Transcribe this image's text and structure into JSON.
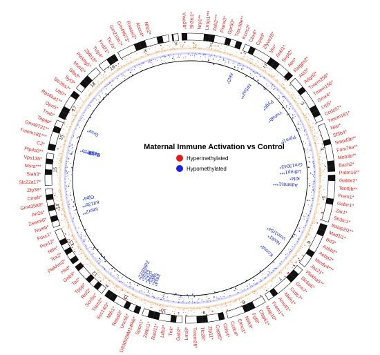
{
  "title": "Maternal Immune Activation vs Control",
  "legend": [
    {
      "label": "Hypermethylated",
      "color": "#e41a1c"
    },
    {
      "label": "Hypomethylated",
      "color": "#1f1fe6"
    }
  ],
  "chromosomes": [
    "1",
    "2",
    "3",
    "4",
    "5",
    "6",
    "7",
    "8",
    "9",
    "10",
    "11",
    "12",
    "13",
    "14",
    "15",
    "16",
    "17",
    "18",
    "19",
    "X",
    "Y"
  ],
  "colors": {
    "hyper": "#e0201b",
    "hypo": "#1a2fd6",
    "track": "#f2c8a0",
    "hypo_track": "#b9b3ef",
    "ring": "#000000"
  },
  "hyper_labels": [
    "Vwa3b*",
    "Sh3tc1*",
    "Nrp1**",
    "Lrrtip1***",
    "Zeb2***",
    "Pianx3*",
    "Gpr50*",
    "Trpc30e**",
    "Kcnc2*",
    "Cbx6*",
    "Cpad*",
    "Zfyve28*",
    "Vtn*",
    "Ankl1*",
    "Sept2*",
    "Atm*",
    "Ralgps2*",
    "Akt3*",
    "Adgrl2*",
    "Tmem258*",
    "Tmem156*",
    "Grnx4*",
    "Lrp5*",
    "Ccdc57*",
    "Tmem181*",
    "Nlar*",
    "Sf3b4*",
    "Smpd3b**",
    "Fam76a**",
    "Mob3b**",
    "Bach2*",
    "Prdm16**",
    "Gabbr2*",
    "Tent5b**",
    "Frem1*",
    "Gabrr1*",
    "Zar1*",
    "Sh3tc1*",
    "Baiap2l1**",
    "Mad1l1*",
    "Brl3*",
    "Azbb2*",
    "Aebp2*",
    "Mindy4***",
    "Jaz21*",
    "Plekha5**",
    "Slc6a6*",
    "Grm7*",
    "Ccdc7*",
    "Mkln1*",
    "Amotl1*",
    "Frem1**",
    "Map10*",
    "Cfap61*",
    "Fgf8*",
    "Ntrk3*",
    "Elmo1*",
    "Ccdc4*",
    "Cbln4*",
    "Cep85*",
    "Zfp11*",
    "Ttc28*",
    "Tmem26*",
    "Lrrc8*",
    "Gab2*",
    "Tnk*",
    "Ldb2*",
    "Rasl11*",
    "Zbtb11*",
    "Spon1*",
    "D930028M14Rik*",
    "Unc5b*",
    "Rasal3*",
    "Mtfr1*",
    "Ssc14l3*",
    "Tiam2*",
    "Scn5a*",
    "Rnf2*",
    "Tppp*",
    "Taz*",
    "Gnb3*",
    "Hsd*",
    "Plekhm2*",
    "Tox2*",
    "Ndn*",
    "Pex12*",
    "Foxc1*",
    "Numb*",
    "Zswim6*",
    "Arl2a*",
    "Gm43589*",
    "Cmah*",
    "Zfp36*",
    "Slc22a17*",
    "Siah3*",
    "Msra***",
    "Vps13b*",
    "Ptp4a3**",
    "C2*",
    "Tmem181***",
    "Gm49721**",
    "Tagap*",
    "Tnxb*",
    "Opn5*",
    "Rps6ka1**",
    "Ubl7*",
    "Slc39a7*",
    "Syt3*",
    "Sfta3*",
    "Mucl2*",
    "Plekhg5*",
    "Zbtb18*",
    "Tulp4*",
    "Fnd21*",
    "Ttc7a*",
    "Gm21047*",
    "Gm49673*",
    "Rnasel2*",
    "Abcc4*",
    "Nfib2*"
  ],
  "hypo_labels": [
    "Akt3*",
    "Nr5a2**",
    "Gnai*",
    "Or10h1b*",
    "Lyl9B**",
    "Bag6*",
    "Pygb*",
    "Ywhab*",
    "Ppm1f*",
    "Gm13043*",
    "Ldlrap1***",
    "Klf4*",
    "Adamts1***",
    "Mtnr2**",
    "Kif13b**",
    "Gjb6*",
    "Vmn1r54*",
    "Nodl1*",
    "Kcnn4*",
    "Ints4*",
    "Sytl2*",
    "Nfia*",
    "Pck2*",
    "Jtbas*",
    "Zdhhc22*"
  ]
}
